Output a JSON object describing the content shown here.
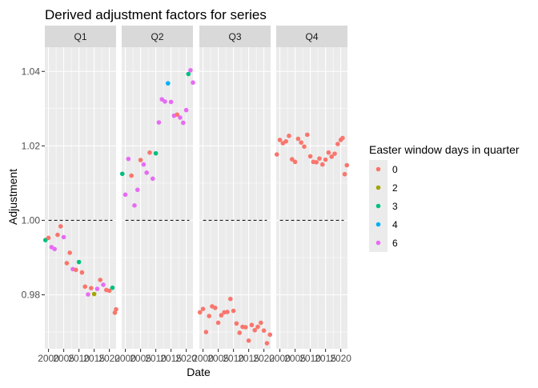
{
  "chart_data": {
    "type": "scatter",
    "title": "Derived adjustment factors for series",
    "xlabel": "Date",
    "ylabel": "Adjustment",
    "ylim": [
      0.9655,
      1.0465
    ],
    "xlim": [
      1998.8,
      2022.2
    ],
    "yticks": [
      0.98,
      1.0,
      1.02,
      1.04
    ],
    "ytick_labels": [
      "0.98",
      "1.00",
      "1.02",
      "1.04"
    ],
    "xticks": [
      2000,
      2005,
      2010,
      2015,
      2020
    ],
    "xtick_labels": [
      "2000",
      "2005",
      "2010",
      "2015",
      "2020"
    ],
    "reference_line": 1.0,
    "grid": true,
    "legend": {
      "title": "Easter window days in quarter",
      "placement": "right",
      "entries": [
        {
          "label": "0",
          "color": "#F8766D"
        },
        {
          "label": "2",
          "color": "#A3A500"
        },
        {
          "label": "3",
          "color": "#00BF7D"
        },
        {
          "label": "4",
          "color": "#00B0F6"
        },
        {
          "label": "6",
          "color": "#E76BF3"
        }
      ]
    },
    "panels": [
      {
        "label": "Q1",
        "points": [
          {
            "x": 1999,
            "y": 0.9947,
            "group": "3"
          },
          {
            "x": 2000,
            "y": 0.9953,
            "group": "0"
          },
          {
            "x": 2001,
            "y": 0.9928,
            "group": "6"
          },
          {
            "x": 2002,
            "y": 0.9923,
            "group": "6"
          },
          {
            "x": 2003,
            "y": 0.9961,
            "group": "0"
          },
          {
            "x": 2004,
            "y": 0.9984,
            "group": "0"
          },
          {
            "x": 2005,
            "y": 0.9955,
            "group": "6"
          },
          {
            "x": 2006,
            "y": 0.9885,
            "group": "0"
          },
          {
            "x": 2007,
            "y": 0.9913,
            "group": "0"
          },
          {
            "x": 2008,
            "y": 0.9869,
            "group": "6"
          },
          {
            "x": 2009,
            "y": 0.9867,
            "group": "0"
          },
          {
            "x": 2010,
            "y": 0.9888,
            "group": "3"
          },
          {
            "x": 2011,
            "y": 0.986,
            "group": "0"
          },
          {
            "x": 2012,
            "y": 0.9822,
            "group": "0"
          },
          {
            "x": 2013,
            "y": 0.9801,
            "group": "6"
          },
          {
            "x": 2014,
            "y": 0.9818,
            "group": "0"
          },
          {
            "x": 2015,
            "y": 0.9802,
            "group": "2"
          },
          {
            "x": 2016,
            "y": 0.9816,
            "group": "6"
          },
          {
            "x": 2017,
            "y": 0.984,
            "group": "0"
          },
          {
            "x": 2018,
            "y": 0.9827,
            "group": "6"
          },
          {
            "x": 2019,
            "y": 0.9813,
            "group": "0"
          },
          {
            "x": 2020,
            "y": 0.9811,
            "group": "0"
          },
          {
            "x": 2021,
            "y": 0.9819,
            "group": "3"
          },
          {
            "x": 2021.8,
            "y": 0.9752,
            "group": "0"
          },
          {
            "x": 2022.2,
            "y": 0.9761,
            "group": "0"
          }
        ]
      },
      {
        "label": "Q2",
        "points": [
          {
            "x": 1999,
            "y": 1.0125,
            "group": "3"
          },
          {
            "x": 2000,
            "y": 1.0069,
            "group": "6"
          },
          {
            "x": 2001,
            "y": 1.0165,
            "group": "6"
          },
          {
            "x": 2002,
            "y": 1.012,
            "group": "0"
          },
          {
            "x": 2003,
            "y": 1.004,
            "group": "6"
          },
          {
            "x": 2004,
            "y": 1.0082,
            "group": "6"
          },
          {
            "x": 2005,
            "y": 1.0162,
            "group": "0"
          },
          {
            "x": 2006,
            "y": 1.015,
            "group": "6"
          },
          {
            "x": 2007,
            "y": 1.0128,
            "group": "6"
          },
          {
            "x": 2008,
            "y": 1.0182,
            "group": "0"
          },
          {
            "x": 2009,
            "y": 1.0112,
            "group": "6"
          },
          {
            "x": 2010,
            "y": 1.018,
            "group": "3"
          },
          {
            "x": 2011,
            "y": 1.0263,
            "group": "6"
          },
          {
            "x": 2012,
            "y": 1.0325,
            "group": "6"
          },
          {
            "x": 2013,
            "y": 1.0319,
            "group": "6"
          },
          {
            "x": 2014,
            "y": 1.0368,
            "group": "4"
          },
          {
            "x": 2015,
            "y": 1.0318,
            "group": "6"
          },
          {
            "x": 2016,
            "y": 1.0281,
            "group": "6"
          },
          {
            "x": 2017,
            "y": 1.0284,
            "group": "0"
          },
          {
            "x": 2018,
            "y": 1.0276,
            "group": "6"
          },
          {
            "x": 2019,
            "y": 1.0262,
            "group": "6"
          },
          {
            "x": 2020,
            "y": 1.0296,
            "group": "6"
          },
          {
            "x": 2020.7,
            "y": 1.0393,
            "group": "3"
          },
          {
            "x": 2021.4,
            "y": 1.0403,
            "group": "6"
          },
          {
            "x": 2022.2,
            "y": 1.037,
            "group": "6"
          }
        ]
      },
      {
        "label": "Q3",
        "points": [
          {
            "x": 1999,
            "y": 0.9753,
            "group": "0"
          },
          {
            "x": 2000,
            "y": 0.9762,
            "group": "0"
          },
          {
            "x": 2001,
            "y": 0.97,
            "group": "0"
          },
          {
            "x": 2002,
            "y": 0.9743,
            "group": "0"
          },
          {
            "x": 2003,
            "y": 0.9769,
            "group": "0"
          },
          {
            "x": 2004,
            "y": 0.9765,
            "group": "0"
          },
          {
            "x": 2005,
            "y": 0.9725,
            "group": "0"
          },
          {
            "x": 2006,
            "y": 0.9745,
            "group": "0"
          },
          {
            "x": 2007,
            "y": 0.9753,
            "group": "0"
          },
          {
            "x": 2008,
            "y": 0.9754,
            "group": "0"
          },
          {
            "x": 2009,
            "y": 0.9789,
            "group": "0"
          },
          {
            "x": 2010,
            "y": 0.9757,
            "group": "0"
          },
          {
            "x": 2011,
            "y": 0.9723,
            "group": "0"
          },
          {
            "x": 2012,
            "y": 0.9698,
            "group": "0"
          },
          {
            "x": 2013,
            "y": 0.9714,
            "group": "0"
          },
          {
            "x": 2014,
            "y": 0.9713,
            "group": "0"
          },
          {
            "x": 2015,
            "y": 0.9677,
            "group": "0"
          },
          {
            "x": 2016,
            "y": 0.9719,
            "group": "0"
          },
          {
            "x": 2017,
            "y": 0.9705,
            "group": "0"
          },
          {
            "x": 2018,
            "y": 0.9714,
            "group": "0"
          },
          {
            "x": 2019,
            "y": 0.9725,
            "group": "0"
          },
          {
            "x": 2020,
            "y": 0.9704,
            "group": "0"
          },
          {
            "x": 2021,
            "y": 0.967,
            "group": "0"
          },
          {
            "x": 2022,
            "y": 0.9693,
            "group": "0"
          }
        ]
      },
      {
        "label": "Q4",
        "points": [
          {
            "x": 1999,
            "y": 1.0177,
            "group": "0"
          },
          {
            "x": 2000,
            "y": 1.0216,
            "group": "0"
          },
          {
            "x": 2001,
            "y": 1.0207,
            "group": "0"
          },
          {
            "x": 2002,
            "y": 1.0212,
            "group": "0"
          },
          {
            "x": 2003,
            "y": 1.0227,
            "group": "0"
          },
          {
            "x": 2004,
            "y": 1.0164,
            "group": "0"
          },
          {
            "x": 2005,
            "y": 1.0157,
            "group": "0"
          },
          {
            "x": 2006,
            "y": 1.0219,
            "group": "0"
          },
          {
            "x": 2007,
            "y": 1.0209,
            "group": "0"
          },
          {
            "x": 2008,
            "y": 1.0198,
            "group": "0"
          },
          {
            "x": 2009,
            "y": 1.023,
            "group": "0"
          },
          {
            "x": 2010,
            "y": 1.0172,
            "group": "0"
          },
          {
            "x": 2011,
            "y": 1.0157,
            "group": "0"
          },
          {
            "x": 2012,
            "y": 1.0156,
            "group": "0"
          },
          {
            "x": 2013,
            "y": 1.0166,
            "group": "0"
          },
          {
            "x": 2014,
            "y": 1.015,
            "group": "0"
          },
          {
            "x": 2015,
            "y": 1.0163,
            "group": "0"
          },
          {
            "x": 2016,
            "y": 1.0182,
            "group": "0"
          },
          {
            "x": 2017,
            "y": 1.0171,
            "group": "0"
          },
          {
            "x": 2018,
            "y": 1.0179,
            "group": "0"
          },
          {
            "x": 2019,
            "y": 1.0205,
            "group": "0"
          },
          {
            "x": 2020,
            "y": 1.0216,
            "group": "0"
          },
          {
            "x": 2020.6,
            "y": 1.0221,
            "group": "0"
          },
          {
            "x": 2021.3,
            "y": 1.0124,
            "group": "0"
          },
          {
            "x": 2022,
            "y": 1.0148,
            "group": "0"
          }
        ]
      }
    ]
  }
}
